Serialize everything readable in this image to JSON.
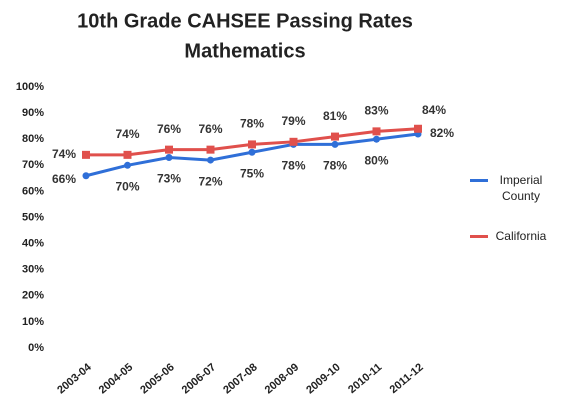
{
  "chart_data": {
    "type": "line",
    "title": [
      "10th Grade CAHSEE Passing Rates",
      "Mathematics"
    ],
    "categories": [
      "2003-04",
      "2004-05",
      "2005-06",
      "2006-07",
      "2007-08",
      "2008-09",
      "2009-10",
      "2010-11",
      "2011-12"
    ],
    "series": [
      {
        "name": "Imperial County",
        "color": "#2f6fd8",
        "values": [
          66,
          70,
          73,
          72,
          75,
          78,
          78,
          80,
          82
        ],
        "value_labels": [
          "66%",
          "70%",
          "73%",
          "72%",
          "75%",
          "78%",
          "78%",
          "80%",
          "82%"
        ]
      },
      {
        "name": "California",
        "color": "#e0504c",
        "values": [
          74,
          74,
          76,
          76,
          78,
          79,
          81,
          83,
          84
        ],
        "value_labels": [
          "74%",
          "74%",
          "76%",
          "76%",
          "78%",
          "79%",
          "81%",
          "83%",
          "84%"
        ]
      }
    ],
    "ylim": [
      0,
      100
    ],
    "yticks": [
      {
        "value": 0,
        "label": "0%"
      },
      {
        "value": 10,
        "label": "10%"
      },
      {
        "value": 20,
        "label": "20%"
      },
      {
        "value": 30,
        "label": "30%"
      },
      {
        "value": 40,
        "label": "40%"
      },
      {
        "value": 50,
        "label": "50%"
      },
      {
        "value": 60,
        "label": "60%"
      },
      {
        "value": 70,
        "label": "70%"
      },
      {
        "value": 80,
        "label": "80%"
      },
      {
        "value": 90,
        "label": "90%"
      },
      {
        "value": 100,
        "label": "100%"
      }
    ],
    "grid": false,
    "legend": "right"
  }
}
